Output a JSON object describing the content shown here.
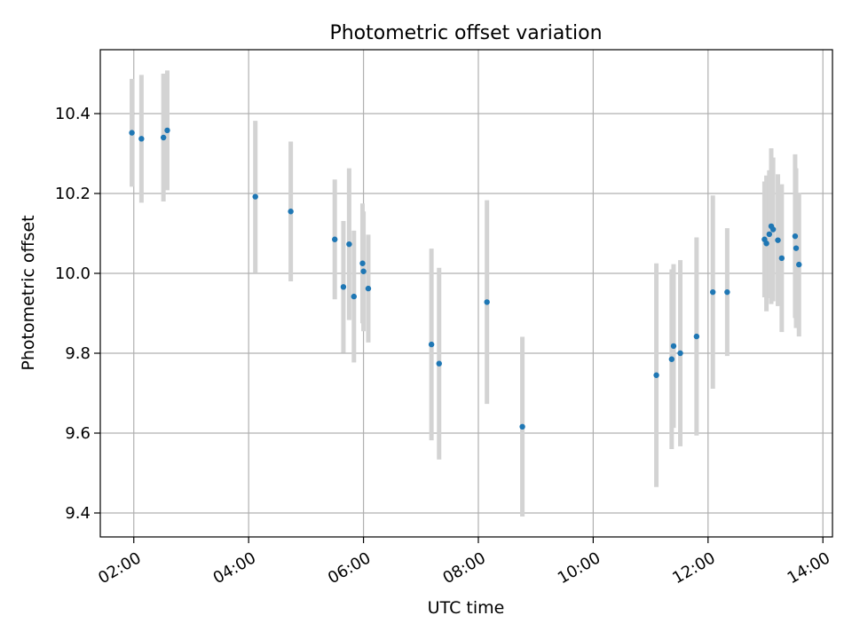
{
  "chart_data": {
    "type": "scatter",
    "title": "Photometric offset variation",
    "xlabel": "UTC time",
    "ylabel": "Photometric offset",
    "x_unit": "hours UTC",
    "xlim": [
      "01:25",
      "14:10"
    ],
    "ylim": [
      9.34,
      10.56
    ],
    "x_ticks": [
      "02:00",
      "04:00",
      "06:00",
      "08:00",
      "10:00",
      "12:00",
      "14:00"
    ],
    "y_ticks": [
      "9.4",
      "9.6",
      "9.8",
      "10.0",
      "10.2",
      "10.4"
    ],
    "grid": true,
    "colors": {
      "points": "#1f77b4",
      "errorbars": "#d3d3d3",
      "grid": "#b0b0b0"
    },
    "points": [
      {
        "x": "01:58",
        "y": 10.352,
        "err": 0.135
      },
      {
        "x": "02:08",
        "y": 10.337,
        "err": 0.16
      },
      {
        "x": "02:31",
        "y": 10.34,
        "err": 0.16
      },
      {
        "x": "02:35",
        "y": 10.358,
        "err": 0.15
      },
      {
        "x": "04:07",
        "y": 10.192,
        "err": 0.19
      },
      {
        "x": "04:44",
        "y": 10.155,
        "err": 0.175
      },
      {
        "x": "05:30",
        "y": 10.085,
        "err": 0.15
      },
      {
        "x": "05:39",
        "y": 9.966,
        "err": 0.165
      },
      {
        "x": "05:45",
        "y": 10.073,
        "err": 0.19
      },
      {
        "x": "05:50",
        "y": 9.942,
        "err": 0.165
      },
      {
        "x": "05:59",
        "y": 10.025,
        "err": 0.15
      },
      {
        "x": "06:00",
        "y": 10.005,
        "err": 0.15
      },
      {
        "x": "06:05",
        "y": 9.962,
        "err": 0.135
      },
      {
        "x": "07:11",
        "y": 9.822,
        "err": 0.24
      },
      {
        "x": "07:19",
        "y": 9.774,
        "err": 0.24
      },
      {
        "x": "08:09",
        "y": 9.928,
        "err": 0.255
      },
      {
        "x": "08:46",
        "y": 9.616,
        "err": 0.225
      },
      {
        "x": "11:06",
        "y": 9.745,
        "err": 0.28
      },
      {
        "x": "11:22",
        "y": 9.785,
        "err": 0.225
      },
      {
        "x": "11:24",
        "y": 9.818,
        "err": 0.205
      },
      {
        "x": "11:31",
        "y": 9.8,
        "err": 0.233
      },
      {
        "x": "11:48",
        "y": 9.842,
        "err": 0.248
      },
      {
        "x": "12:05",
        "y": 9.953,
        "err": 0.242
      },
      {
        "x": "12:20",
        "y": 9.953,
        "err": 0.16
      },
      {
        "x": "12:59",
        "y": 10.085,
        "err": 0.145
      },
      {
        "x": "13:01",
        "y": 10.075,
        "err": 0.17
      },
      {
        "x": "13:04",
        "y": 10.098,
        "err": 0.16
      },
      {
        "x": "13:06",
        "y": 10.118,
        "err": 0.195
      },
      {
        "x": "13:08",
        "y": 10.11,
        "err": 0.18
      },
      {
        "x": "13:13",
        "y": 10.083,
        "err": 0.165
      },
      {
        "x": "13:17",
        "y": 10.038,
        "err": 0.185
      },
      {
        "x": "13:31",
        "y": 10.093,
        "err": 0.205
      },
      {
        "x": "13:32",
        "y": 10.063,
        "err": 0.2
      },
      {
        "x": "13:35",
        "y": 10.022,
        "err": 0.18
      }
    ]
  }
}
